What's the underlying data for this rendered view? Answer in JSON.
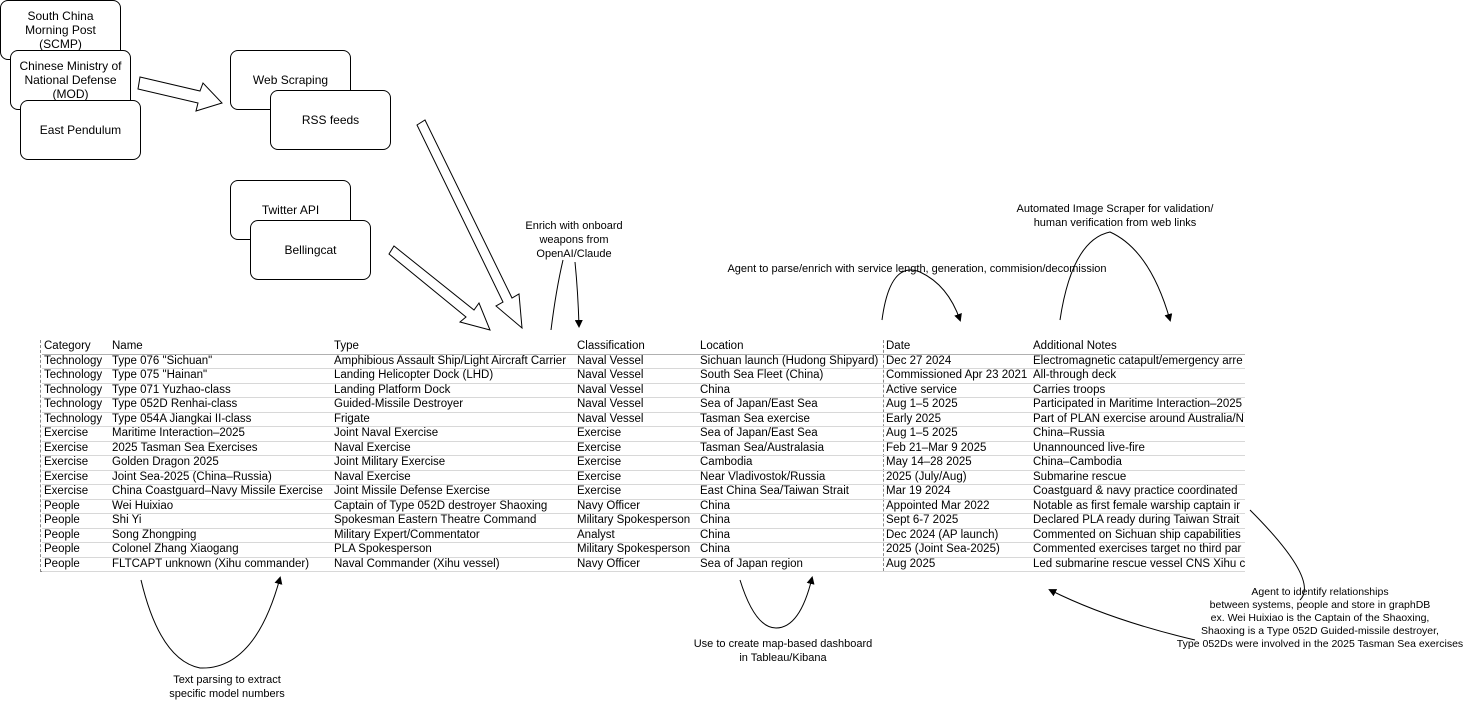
{
  "sources": {
    "scmp": "South China Morning Post (SCMP)",
    "mod": "Chinese Ministry of National Defense (MOD)",
    "east_pendulum": "East Pendulum",
    "web_scraping": "Web Scraping",
    "rss_feeds": "RSS feeds",
    "twitter_api": "Twitter API",
    "bellingcat": "Bellingcat"
  },
  "annotations": {
    "enrich_weapons": "Enrich with onboard\nweapons from\nOpenAI/Claude",
    "agent_parse": "Agent to parse/enrich with service length, generation, commision/decomission",
    "image_scraper": "Automated Image Scraper for validation/\nhuman verification from web links",
    "text_parsing": "Text parsing to extract\nspecific model numbers",
    "map_dashboard": "Use to create map-based dashboard\nin Tableau/Kibana",
    "relationships": "Agent to identify relationships\nbetween systems, people and store in graphDB\nex. Wei Huixiao is the Captain of the Shaoxing,\nShaoxing is a Type 052D Guided-missile destroyer,\nType 052Ds were involved in the 2025 Tasman Sea exercises"
  },
  "table": {
    "headers": [
      "Category",
      "Name",
      "Type",
      "Classification",
      "Location",
      "Date",
      "Additional Notes"
    ],
    "rows": [
      [
        "Technology",
        "Type 076 \"Sichuan\"",
        "Amphibious Assault Ship/Light Aircraft Carrier",
        "Naval Vessel",
        "Sichuan launch (Hudong Shipyard)",
        "Dec 27 2024",
        "Electromagnetic catapult/emergency arre"
      ],
      [
        "Technology",
        "Type 075 \"Hainan\"",
        "Landing Helicopter Dock (LHD)",
        "Naval Vessel",
        "South Sea Fleet (China)",
        "Commissioned Apr 23 2021",
        "All-through deck"
      ],
      [
        "Technology",
        "Type 071 Yuzhao-class",
        "Landing Platform Dock",
        "Naval Vessel",
        "China",
        "Active service",
        "Carries troops"
      ],
      [
        "Technology",
        "Type 052D Renhai-class",
        "Guided-Missile Destroyer",
        "Naval Vessel",
        "Sea of Japan/East Sea",
        "Aug 1–5 2025",
        "Participated in Maritime Interaction–2025"
      ],
      [
        "Technology",
        "Type 054A Jiangkai II-class",
        "Frigate",
        "Naval Vessel",
        "Tasman Sea exercise",
        "Early 2025",
        "Part of PLAN exercise around Australia/N"
      ],
      [
        "Exercise",
        "Maritime Interaction–2025",
        "Joint Naval Exercise",
        "Exercise",
        "Sea of Japan/East Sea",
        "Aug 1–5 2025",
        "China–Russia"
      ],
      [
        "Exercise",
        "2025 Tasman Sea Exercises",
        "Naval Exercise",
        "Exercise",
        "Tasman Sea/Australasia",
        "Feb 21–Mar 9 2025",
        "Unannounced live-fire"
      ],
      [
        "Exercise",
        "Golden Dragon 2025",
        "Joint Military Exercise",
        "Exercise",
        "Cambodia",
        "May 14–28 2025",
        "China–Cambodia"
      ],
      [
        "Exercise",
        "Joint Sea-2025 (China–Russia)",
        "Naval Exercise",
        "Exercise",
        "Near Vladivostok/Russia",
        "2025 (July/Aug)",
        "Submarine rescue"
      ],
      [
        "Exercise",
        "China Coastguard–Navy Missile Exercise",
        "Joint Missile Defense Exercise",
        "Exercise",
        "East China Sea/Taiwan Strait",
        "Mar 19 2024",
        "Coastguard & navy practice coordinated"
      ],
      [
        "People",
        "Wei Huixiao",
        "Captain of Type 052D destroyer Shaoxing",
        "Navy Officer",
        "China",
        "Appointed Mar 2022",
        "Notable as first female warship captain ir"
      ],
      [
        "People",
        "Shi Yi",
        "Spokesman Eastern Theatre Command",
        "Military Spokesperson",
        "China",
        "Sept 6-7 2025",
        "Declared PLA ready during Taiwan Strait"
      ],
      [
        "People",
        "Song Zhongping",
        "Military Expert/Commentator",
        "Analyst",
        "China",
        "Dec 2024 (AP launch)",
        "Commented on Sichuan ship capabilities"
      ],
      [
        "People",
        "Colonel Zhang Xiaogang",
        "PLA Spokesperson",
        "Military Spokesperson",
        "China",
        "2025 (Joint Sea-2025)",
        "Commented exercises target no third par"
      ],
      [
        "People",
        "FLTCAPT unknown (Xihu commander)",
        "Naval Commander (Xihu vessel)",
        "Navy Officer",
        "Sea of Japan region",
        "Aug 2025",
        "Led submarine rescue vessel CNS Xihu c"
      ]
    ]
  }
}
